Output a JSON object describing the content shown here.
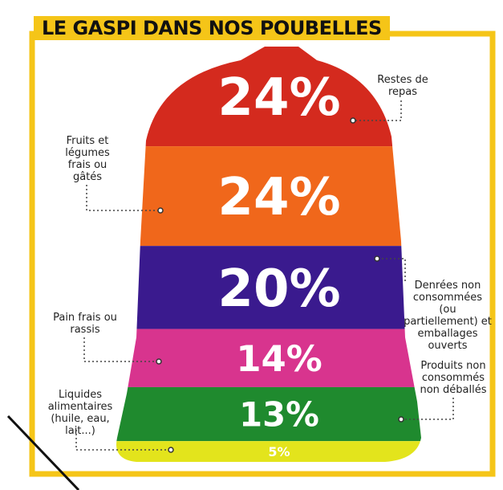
{
  "chart_data": {
    "type": "bag",
    "title": "LE GASPI DANS NOS POUBELLES",
    "categories": [
      "Restes de repas",
      "Fruits et légumes frais ou gâtés",
      "Denrées non consommées (ou partiellement) et emballages ouverts",
      "Pain frais ou rassis",
      "Produits non consommés non déballés",
      "Liquides alimentaires (huile, eau, lait...)"
    ],
    "values": [
      24,
      24,
      20,
      14,
      13,
      5
    ],
    "value_labels": [
      "24%",
      "24%",
      "20%",
      "14%",
      "13%",
      "5%"
    ],
    "colors": [
      "#d42a1e",
      "#f0671b",
      "#3a1a8e",
      "#d8348e",
      "#1f8a2e",
      "#e3e41c"
    ]
  }
}
